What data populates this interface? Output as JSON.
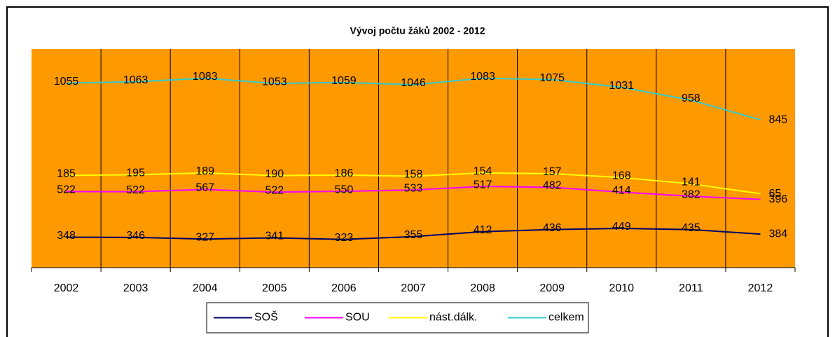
{
  "chart_data": {
    "type": "line",
    "stacked": true,
    "title": "Vývoj počtu žáků 2002 - 2012",
    "categories": [
      "2002",
      "2003",
      "2004",
      "2005",
      "2006",
      "2007",
      "2008",
      "2009",
      "2010",
      "2011",
      "2012"
    ],
    "ylim": [
      0,
      2500
    ],
    "series": [
      {
        "name": "SOŠ",
        "color": "#000066",
        "values": [
          348,
          346,
          327,
          341,
          323,
          355,
          412,
          436,
          449,
          435,
          384
        ]
      },
      {
        "name": "SOU",
        "color": "#FF00FF",
        "values": [
          522,
          522,
          567,
          522,
          550,
          533,
          517,
          482,
          414,
          382,
          396
        ]
      },
      {
        "name": "nást.dálk.",
        "color": "#FFFF00",
        "values": [
          185,
          195,
          189,
          190,
          186,
          158,
          154,
          157,
          168,
          141,
          65
        ]
      },
      {
        "name": "celkem",
        "color": "#33CCCC",
        "values": [
          1055,
          1063,
          1083,
          1053,
          1059,
          1046,
          1083,
          1075,
          1031,
          958,
          845
        ]
      }
    ],
    "legend": "bottom",
    "plot_background": "#FF9900"
  }
}
